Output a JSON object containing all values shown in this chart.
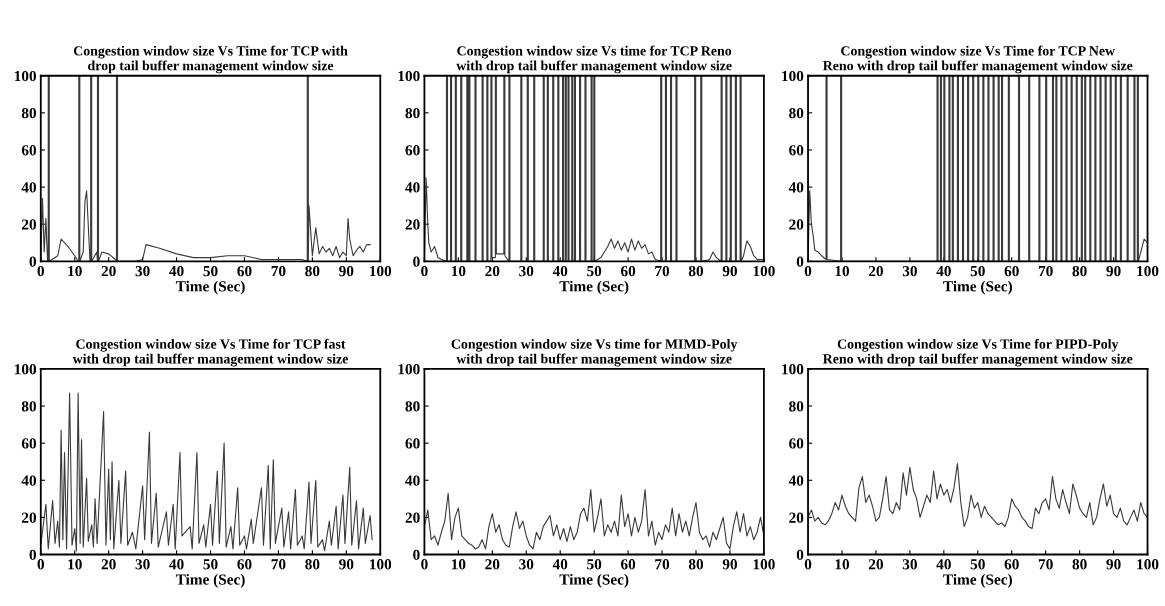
{
  "chart_data": [
    {
      "type": "line",
      "title": "Congestion window size Vs Time for TCP with\ndrop tail buffer management window size",
      "xlabel": "Time (Sec)",
      "xlim": [
        0,
        100
      ],
      "ylim": [
        0,
        100
      ],
      "xticks": [
        0,
        10,
        20,
        30,
        40,
        50,
        60,
        70,
        80,
        90,
        100
      ],
      "yticks": [
        0,
        20,
        40,
        60,
        80,
        100
      ],
      "series": [
        {
          "color": "#3a3a3a",
          "x": [
            0,
            0.5,
            1,
            1.5,
            2,
            2.2,
            2.2,
            2.5,
            2.5,
            5,
            6,
            8,
            10,
            11,
            11.2,
            11.2,
            11.5,
            11.5,
            12.5,
            13,
            13.5,
            14.5,
            14.7,
            14.7,
            15,
            15,
            16.5,
            16.7,
            16.7,
            17,
            17,
            18,
            20,
            22,
            22.3,
            22.3,
            22.6,
            22.6,
            24,
            28,
            30,
            31,
            35,
            40,
            45,
            50,
            55,
            60,
            65,
            70,
            75,
            77,
            78.5,
            78.5,
            78.8,
            78.8,
            79,
            80,
            81,
            82,
            83,
            84,
            85,
            86,
            87,
            88,
            89,
            90,
            90.5,
            91,
            92,
            93,
            94,
            95,
            96,
            97
          ],
          "values": [
            0,
            34,
            5,
            23,
            0,
            0,
            100,
            100,
            0,
            3,
            12,
            8,
            3,
            0,
            0,
            100,
            100,
            0,
            5,
            32,
            38,
            0,
            0,
            100,
            100,
            0,
            5,
            0,
            100,
            100,
            0,
            5,
            4,
            1,
            0,
            100,
            100,
            0,
            0,
            0,
            1,
            9,
            7,
            4,
            2,
            2,
            3,
            3,
            1,
            1,
            1,
            1,
            0,
            100,
            100,
            0,
            30,
            3,
            18,
            4,
            8,
            5,
            7,
            3,
            8,
            2,
            5,
            3,
            23,
            12,
            3,
            6,
            8,
            5,
            9,
            9
          ]
        }
      ]
    },
    {
      "type": "line",
      "title": "Congestion window size Vs time for TCP Reno\nwith drop tail buffer management window size",
      "xlabel": "Time (Sec)",
      "xlim": [
        0,
        100
      ],
      "ylim": [
        0,
        100
      ],
      "xticks": [
        0,
        10,
        20,
        30,
        40,
        50,
        60,
        70,
        80,
        90,
        100
      ],
      "yticks": [
        0,
        20,
        40,
        60,
        80,
        100
      ],
      "series": [
        {
          "color": "#3a3a3a",
          "x": [
            0,
            0.5,
            0.7,
            1,
            1.3,
            2,
            3,
            4,
            5,
            6.5,
            6.5,
            6.8,
            6.8,
            7.7,
            7.7,
            8.0,
            8.0,
            9.1,
            9.1,
            9.4,
            9.4,
            10.7,
            10.7,
            11.0,
            11.0,
            12.5,
            12.5,
            12.8,
            12.8,
            13.1,
            13.1,
            13.4,
            13.4,
            14.9,
            14.9,
            15.2,
            15.2,
            17.0,
            17.0,
            17.3,
            17.3,
            18.4,
            18.4,
            18.7,
            18.7,
            19.6,
            19.6,
            19.9,
            19.9,
            20.9,
            20.9,
            21.2,
            21.2,
            23.4,
            23.4,
            23.7,
            23.7,
            24.9,
            24.9,
            25.2,
            25.2,
            28.4,
            28.4,
            28.7,
            28.7,
            30.3,
            30.3,
            30.6,
            30.6,
            32.2,
            32.2,
            32.5,
            32.5,
            35.0,
            35.0,
            35.3,
            35.3,
            36.2,
            36.2,
            36.5,
            36.5,
            37.8,
            37.8,
            38.1,
            38.1,
            39.3,
            39.3,
            39.6,
            39.6,
            40.7,
            40.7,
            41.0,
            41.0,
            41.5,
            41.5,
            41.8,
            41.8,
            42.3,
            42.3,
            42.6,
            42.6,
            43.4,
            43.4,
            43.7,
            43.7,
            44.2,
            44.2,
            44.5,
            44.5,
            45.7,
            45.7,
            46.0,
            46.0,
            47.3,
            47.3,
            47.6,
            47.6,
            49.1,
            49.1,
            49.4,
            49.4,
            49.9,
            49.9,
            50.2,
            50.2,
            52,
            54,
            55,
            56,
            57,
            58,
            59,
            60,
            61,
            62,
            63,
            64,
            65,
            66,
            67,
            68,
            69.6,
            69.6,
            69.9,
            69.9,
            71.0,
            71.0,
            71.3,
            71.3,
            72.5,
            72.5,
            72.8,
            72.8,
            74.1,
            74.1,
            74.4,
            74.4,
            79.6,
            79.6,
            79.9,
            79.9,
            81.4,
            81.4,
            81.7,
            81.7,
            84,
            85,
            86,
            87.4,
            87.4,
            87.7,
            87.7,
            88.8,
            88.8,
            89.1,
            89.1,
            90.1,
            90.1,
            90.4,
            90.4,
            91.6,
            91.6,
            91.9,
            91.9,
            93.0,
            93.0,
            93.3,
            93.3,
            94,
            95,
            96,
            97,
            98,
            100
          ],
          "values": [
            0,
            45,
            35,
            20,
            10,
            5,
            8,
            2,
            1,
            0,
            100,
            100,
            0,
            0,
            100,
            100,
            0,
            0,
            100,
            100,
            0,
            0,
            100,
            100,
            0,
            0,
            100,
            100,
            0,
            0,
            100,
            100,
            0,
            0,
            100,
            100,
            0,
            0,
            100,
            100,
            0,
            0,
            100,
            100,
            0,
            0,
            100,
            100,
            2,
            2,
            100,
            100,
            4,
            4,
            100,
            100,
            3,
            0,
            100,
            100,
            0,
            0,
            100,
            100,
            0,
            0,
            100,
            100,
            0,
            0,
            100,
            100,
            0,
            0,
            100,
            100,
            0,
            0,
            100,
            100,
            0,
            0,
            100,
            100,
            0,
            0,
            100,
            100,
            0,
            0,
            100,
            100,
            0,
            0,
            100,
            100,
            0,
            0,
            100,
            100,
            0,
            0,
            100,
            100,
            0,
            0,
            100,
            100,
            0,
            0,
            100,
            100,
            0,
            0,
            100,
            100,
            0,
            0,
            100,
            100,
            0,
            0,
            100,
            100,
            0,
            2,
            8,
            12,
            7,
            11,
            6,
            10,
            5,
            12,
            6,
            11,
            7,
            9,
            4,
            5,
            1,
            0,
            100,
            100,
            0,
            0,
            100,
            100,
            0,
            0,
            100,
            100,
            0,
            0,
            100,
            100,
            0,
            0,
            100,
            100,
            0,
            0,
            100,
            100,
            0,
            1,
            5,
            2,
            0,
            100,
            100,
            0,
            0,
            100,
            100,
            0,
            0,
            100,
            100,
            0,
            0,
            100,
            100,
            0,
            0,
            100,
            100,
            0,
            3,
            11,
            8,
            3,
            1,
            1
          ]
        }
      ]
    },
    {
      "type": "line",
      "title": "Congestion window size Vs Time for TCP New\nReno with drop tail buffer management window size",
      "xlabel": "Time (Sec)",
      "xlim": [
        0,
        100
      ],
      "ylim": [
        0,
        100
      ],
      "xticks": [
        0,
        10,
        20,
        30,
        40,
        50,
        60,
        70,
        80,
        90,
        100
      ],
      "yticks": [
        0,
        20,
        40,
        60,
        80,
        100
      ],
      "series": [
        {
          "color": "#3a3a3a",
          "x": [
            0,
            0.5,
            1,
            1.5,
            2,
            3,
            4,
            5.3,
            5.3,
            5.6,
            5.6,
            9.6,
            9.6,
            9.9,
            9.9,
            38,
            38,
            38.3,
            38.3,
            39,
            39,
            39.3,
            39.3,
            40,
            40,
            40.3,
            40.3,
            41.5,
            41.5,
            41.8,
            41.8,
            42.5,
            42.5,
            42.8,
            42.8,
            44,
            44,
            44.3,
            44.3,
            45.5,
            45.5,
            45.8,
            45.8,
            47,
            47,
            47.3,
            47.3,
            48.5,
            48.5,
            48.8,
            48.8,
            50,
            50,
            50.3,
            50.3,
            51.5,
            51.5,
            51.8,
            51.8,
            53,
            53,
            53.3,
            53.3,
            54.5,
            54.5,
            54.8,
            54.8,
            56,
            56,
            56.3,
            56.3,
            57,
            57,
            57.3,
            57.3,
            59,
            59,
            59.3,
            59.3,
            62,
            62,
            62.3,
            62.3,
            65,
            65,
            65.3,
            65.3,
            68,
            68,
            68.3,
            68.3,
            70,
            70,
            70.3,
            70.3,
            72,
            72,
            72.3,
            72.3,
            73,
            73,
            73.3,
            73.3,
            74.5,
            74.5,
            74.8,
            74.8,
            76,
            76,
            76.3,
            76.3,
            77.5,
            77.5,
            77.8,
            77.8,
            79,
            79,
            79.3,
            79.3,
            80.5,
            80.5,
            80.8,
            80.8,
            81.5,
            81.5,
            81.8,
            81.8,
            83,
            83,
            83.3,
            83.3,
            84.5,
            84.5,
            84.8,
            84.8,
            86,
            86,
            86.3,
            86.3,
            87.5,
            87.5,
            87.8,
            87.8,
            89,
            89,
            89.3,
            89.3,
            90.5,
            90.5,
            90.8,
            90.8,
            92,
            92,
            92.3,
            92.3,
            94,
            94,
            94.3,
            94.3,
            96,
            96,
            96.3,
            96.3,
            97,
            97,
            97.3,
            97.3,
            98,
            99,
            100
          ],
          "values": [
            0,
            38,
            20,
            14,
            6,
            5,
            3,
            1,
            100,
            100,
            1,
            0,
            100,
            100,
            0,
            0,
            100,
            100,
            0,
            0,
            100,
            100,
            0,
            0,
            100,
            100,
            0,
            0,
            100,
            100,
            0,
            0,
            100,
            100,
            0,
            0,
            100,
            100,
            0,
            0,
            100,
            100,
            0,
            0,
            100,
            100,
            0,
            0,
            100,
            100,
            0,
            0,
            100,
            100,
            0,
            0,
            100,
            100,
            0,
            0,
            100,
            100,
            0,
            0,
            100,
            100,
            0,
            0,
            100,
            100,
            0,
            0,
            100,
            100,
            0,
            0,
            100,
            100,
            0,
            0,
            100,
            100,
            0,
            0,
            100,
            100,
            0,
            0,
            100,
            100,
            0,
            0,
            100,
            100,
            0,
            0,
            100,
            100,
            0,
            0,
            100,
            100,
            0,
            0,
            100,
            100,
            0,
            0,
            100,
            100,
            0,
            0,
            100,
            100,
            0,
            0,
            100,
            100,
            0,
            0,
            100,
            100,
            0,
            0,
            100,
            100,
            0,
            0,
            100,
            100,
            0,
            0,
            100,
            100,
            0,
            0,
            100,
            100,
            0,
            0,
            100,
            100,
            0,
            0,
            100,
            100,
            0,
            0,
            100,
            100,
            0,
            0,
            100,
            100,
            0,
            0,
            100,
            100,
            0,
            0,
            100,
            100,
            0,
            0,
            100,
            100,
            0,
            5,
            12,
            10
          ]
        }
      ]
    },
    {
      "type": "line",
      "title": "Congestion window size Vs Time for TCP fast\nwith drop tail buffer management window size",
      "xlabel": "Time (Sec)",
      "xlim": [
        0,
        100
      ],
      "ylim": [
        0,
        100
      ],
      "xticks": [
        0,
        10,
        20,
        30,
        40,
        50,
        60,
        70,
        80,
        90,
        100
      ],
      "yticks": [
        0,
        20,
        40,
        60,
        80,
        100
      ],
      "series": [
        {
          "color": "#3a3a3a",
          "x": [
            0,
            1.5,
            2.2,
            3.5,
            4.2,
            5,
            5.5,
            6,
            6.5,
            7,
            7.6,
            8.5,
            9.2,
            10,
            10.5,
            11,
            11.6,
            12,
            12.5,
            13.5,
            14,
            15,
            15.5,
            16,
            16.6,
            18.5,
            19.2,
            20,
            20.5,
            21,
            21.5,
            23,
            23.6,
            25,
            25.6,
            27,
            28,
            30,
            30.6,
            32,
            32.6,
            34,
            34.6,
            37,
            37.6,
            39,
            39.6,
            41,
            41.6,
            44,
            44.6,
            46,
            46.6,
            48,
            48.6,
            50,
            50.6,
            52,
            52.6,
            54,
            54.6,
            56,
            56.6,
            58,
            58.6,
            60,
            60.6,
            62,
            62.6,
            65,
            65.6,
            67,
            67.6,
            68.5,
            69.1,
            71,
            71.6,
            73,
            73.6,
            75,
            75.6,
            77,
            77.6,
            79,
            79.6,
            81,
            81.6,
            83,
            83.6,
            85,
            85.6,
            87,
            87.6,
            89,
            89.6,
            91,
            91.6,
            93,
            93.6,
            95,
            95.6,
            97,
            97.6
          ],
          "values": [
            5,
            27,
            3,
            29,
            6,
            18,
            4,
            67,
            8,
            55,
            3,
            87,
            5,
            14,
            2,
            87,
            6,
            62,
            4,
            41,
            7,
            16,
            4,
            30,
            6,
            77,
            5,
            46,
            8,
            50,
            3,
            40,
            6,
            45,
            5,
            12,
            3,
            37,
            8,
            66,
            6,
            33,
            4,
            23,
            5,
            27,
            3,
            55,
            10,
            15,
            3,
            55,
            6,
            16,
            4,
            27,
            5,
            45,
            6,
            60,
            4,
            15,
            3,
            36,
            5,
            10,
            3,
            19,
            6,
            36,
            5,
            48,
            3,
            51,
            6,
            25,
            4,
            23,
            3,
            35,
            5,
            10,
            3,
            39,
            6,
            40,
            4,
            8,
            2,
            18,
            5,
            26,
            3,
            32,
            6,
            47,
            5,
            29,
            3,
            25,
            6,
            21,
            8
          ]
        }
      ]
    },
    {
      "type": "line",
      "title": "Congestion window size Vs time for MIMD-Poly\nwith drop tail buffer management window size",
      "xlabel": "Time (Sec)",
      "xlim": [
        0,
        100
      ],
      "ylim": [
        0,
        100
      ],
      "xticks": [
        0,
        10,
        20,
        30,
        40,
        50,
        60,
        70,
        80,
        90,
        100
      ],
      "yticks": [
        0,
        20,
        40,
        60,
        80,
        100
      ],
      "series": [
        {
          "color": "#3a3a3a",
          "x": [
            0,
            1,
            2,
            3,
            4,
            5,
            6,
            7,
            8,
            9,
            10,
            11,
            12,
            13,
            14,
            15,
            16,
            17,
            18,
            19,
            20,
            21,
            22,
            23,
            24,
            25,
            26,
            27,
            28,
            29,
            30,
            31,
            32,
            33,
            34,
            35,
            36,
            37,
            38,
            39,
            40,
            41,
            42,
            43,
            44,
            45,
            46,
            47,
            48,
            49,
            50,
            51,
            52,
            53,
            54,
            55,
            56,
            57,
            58,
            59,
            60,
            61,
            62,
            63,
            64,
            65,
            66,
            67,
            68,
            69,
            70,
            71,
            72,
            73,
            74,
            75,
            76,
            77,
            78,
            79,
            80,
            81,
            82,
            83,
            84,
            85,
            86,
            87,
            88,
            89,
            90,
            91,
            92,
            93,
            94,
            95,
            96,
            97,
            98,
            99,
            100
          ],
          "values": [
            15,
            24,
            8,
            10,
            5,
            12,
            18,
            33,
            8,
            20,
            25,
            10,
            8,
            6,
            5,
            3,
            4,
            8,
            3,
            15,
            22,
            12,
            16,
            8,
            5,
            4,
            15,
            23,
            14,
            18,
            10,
            5,
            3,
            12,
            8,
            15,
            18,
            21,
            10,
            16,
            8,
            14,
            7,
            15,
            8,
            12,
            22,
            25,
            18,
            35,
            12,
            20,
            30,
            10,
            16,
            12,
            18,
            10,
            32,
            15,
            22,
            10,
            20,
            12,
            18,
            35,
            10,
            18,
            5,
            12,
            8,
            16,
            12,
            25,
            10,
            22,
            12,
            18,
            10,
            20,
            28,
            12,
            8,
            10,
            4,
            12,
            8,
            14,
            20,
            6,
            3,
            15,
            23,
            12,
            22,
            10,
            15,
            8,
            12,
            20,
            10
          ]
        }
      ]
    },
    {
      "type": "line",
      "title": "Congestion window size Vs Time for PIPD-Poly\nReno with drop tail buffer management window size",
      "xlabel": "Time (Sec)",
      "xlim": [
        0,
        100
      ],
      "ylim": [
        0,
        100
      ],
      "xticks": [
        0,
        10,
        20,
        30,
        40,
        50,
        60,
        70,
        80,
        90,
        100
      ],
      "yticks": [
        0,
        20,
        40,
        60,
        80,
        100
      ],
      "series": [
        {
          "color": "#3a3a3a",
          "x": [
            0,
            1,
            2,
            3,
            4,
            5,
            6,
            7,
            8,
            9,
            10,
            11,
            12,
            13,
            14,
            15,
            16,
            17,
            18,
            19,
            20,
            21,
            22,
            23,
            24,
            25,
            26,
            27,
            28,
            29,
            30,
            31,
            32,
            33,
            34,
            35,
            36,
            37,
            38,
            39,
            40,
            41,
            42,
            43,
            44,
            45,
            46,
            47,
            48,
            49,
            50,
            51,
            52,
            53,
            54,
            55,
            56,
            57,
            58,
            59,
            60,
            61,
            62,
            63,
            64,
            65,
            66,
            67,
            68,
            69,
            70,
            71,
            72,
            73,
            74,
            75,
            76,
            77,
            78,
            79,
            80,
            81,
            82,
            83,
            84,
            85,
            86,
            87,
            88,
            89,
            90,
            91,
            92,
            93,
            94,
            95,
            96,
            97,
            98,
            99,
            100
          ],
          "values": [
            20,
            24,
            18,
            20,
            17,
            16,
            18,
            22,
            28,
            24,
            32,
            26,
            22,
            20,
            18,
            36,
            42,
            28,
            32,
            26,
            18,
            20,
            30,
            42,
            24,
            22,
            28,
            24,
            44,
            32,
            47,
            35,
            30,
            20,
            26,
            32,
            28,
            45,
            30,
            38,
            32,
            35,
            28,
            36,
            49,
            28,
            15,
            20,
            32,
            25,
            28,
            20,
            26,
            22,
            20,
            18,
            16,
            17,
            15,
            20,
            30,
            26,
            24,
            20,
            18,
            15,
            14,
            25,
            22,
            28,
            30,
            24,
            42,
            30,
            25,
            35,
            28,
            22,
            38,
            32,
            25,
            22,
            20,
            28,
            16,
            20,
            30,
            38,
            26,
            32,
            22,
            20,
            25,
            18,
            16,
            20,
            24,
            18,
            28,
            22,
            20
          ]
        }
      ]
    }
  ]
}
